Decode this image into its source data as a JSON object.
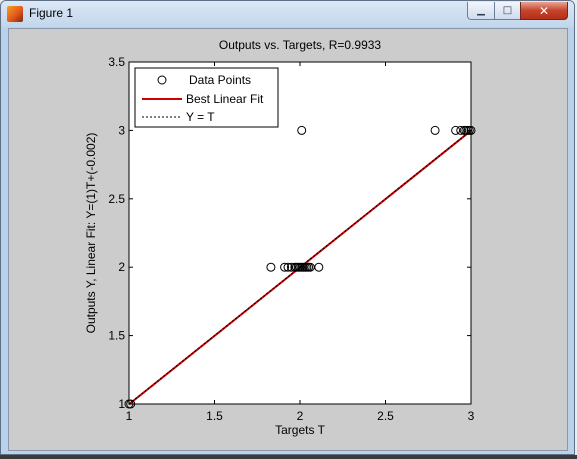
{
  "window": {
    "title": "Figure 1",
    "minimize_glyph": "▁",
    "maximize_glyph": "□",
    "close_glyph": "✕"
  },
  "chart_data": {
    "type": "scatter",
    "title": "Outputs vs. Targets, R=0.9933",
    "xlabel": "Targets T",
    "ylabel": "Outputs Y,  Linear Fit:  Y=(1)T+(-0.002)",
    "xlim": [
      1,
      3
    ],
    "ylim": [
      1,
      3.5
    ],
    "xticks": [
      1,
      1.5,
      2,
      2.5,
      3
    ],
    "yticks": [
      1,
      1.5,
      2,
      2.5,
      3,
      3.5
    ],
    "xtick_labels": [
      "1",
      "1.5",
      "2",
      "2.5",
      "3"
    ],
    "ytick_labels": [
      "1",
      "1.5",
      "2",
      "2.5",
      "3",
      "3.5"
    ],
    "grid": false,
    "legend_position": "top-left",
    "legend": [
      "Data Points",
      "Best Linear Fit",
      "Y = T"
    ],
    "series": [
      {
        "name": "Data Points",
        "type": "scatter",
        "color": "#000000",
        "x": [
          1.0,
          1.01,
          1.83,
          1.91,
          1.93,
          1.95,
          1.97,
          1.98,
          1.99,
          2.0,
          2.01,
          2.02,
          2.03,
          2.04,
          2.05,
          2.06,
          2.11,
          2.01,
          2.79,
          2.91,
          2.94,
          2.96,
          2.97,
          2.98,
          2.99,
          3.0
        ],
        "y": [
          1.0,
          1.0,
          2.0,
          2.0,
          2.0,
          2.0,
          2.0,
          2.0,
          2.0,
          2.0,
          2.0,
          2.0,
          2.0,
          2.0,
          2.0,
          2.0,
          2.0,
          3.0,
          3.0,
          3.0,
          3.0,
          3.0,
          3.0,
          3.0,
          3.0,
          3.0
        ]
      },
      {
        "name": "Best Linear Fit",
        "type": "line",
        "color": "#cc0000",
        "x": [
          1,
          3
        ],
        "y": [
          0.998,
          2.998
        ]
      },
      {
        "name": "Y = T",
        "type": "line",
        "color": "#000000",
        "dashed": true,
        "x": [
          1,
          3
        ],
        "y": [
          1,
          3
        ]
      }
    ]
  }
}
